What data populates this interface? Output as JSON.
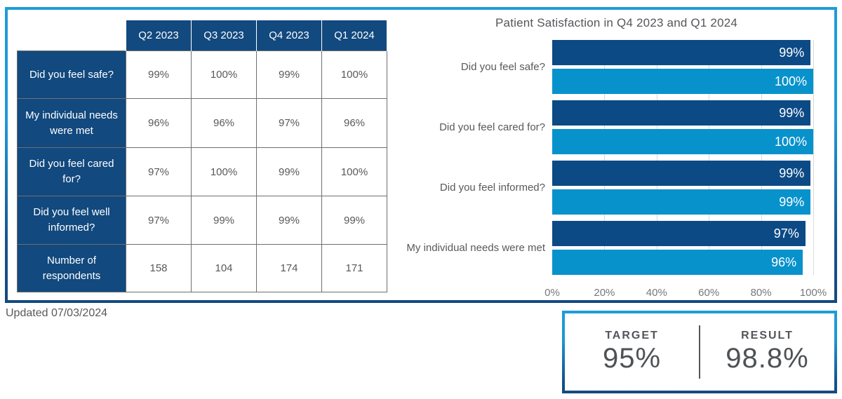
{
  "table": {
    "columns": [
      "Q2 2023",
      "Q3 2023",
      "Q4 2023",
      "Q1 2024"
    ],
    "rows": [
      {
        "label": "Did you feel safe?",
        "values": [
          "99%",
          "100%",
          "99%",
          "100%"
        ]
      },
      {
        "label": "My individual needs were met",
        "values": [
          "96%",
          "96%",
          "97%",
          "96%"
        ]
      },
      {
        "label": "Did you feel cared for?",
        "values": [
          "97%",
          "100%",
          "99%",
          "100%"
        ]
      },
      {
        "label": "Did you feel well informed?",
        "values": [
          "97%",
          "99%",
          "99%",
          "99%"
        ]
      },
      {
        "label": "Number of respondents",
        "values": [
          "158",
          "104",
          "174",
          "171"
        ]
      }
    ]
  },
  "chart_data": {
    "type": "bar",
    "orientation": "horizontal",
    "title": "Patient Satisfaction in Q4 2023 and Q1 2024",
    "categories": [
      "Did you feel safe?",
      "Did you feel cared for?",
      "Did you feel informed?",
      "My individual needs were met"
    ],
    "series": [
      {
        "name": "Q4 2023",
        "color": "#0C4A86",
        "values": [
          99,
          99,
          99,
          97
        ]
      },
      {
        "name": "Q1 2024",
        "color": "#0892CC",
        "values": [
          100,
          100,
          99,
          96
        ]
      }
    ],
    "value_labels": [
      [
        "99%",
        "100%"
      ],
      [
        "99%",
        "100%"
      ],
      [
        "99%",
        "99%"
      ],
      [
        "97%",
        "96%"
      ]
    ],
    "xlim": [
      0,
      100
    ],
    "x_ticks": [
      "0%",
      "20%",
      "40%",
      "60%",
      "80%",
      "100%"
    ],
    "grid": true,
    "legend_position": "none"
  },
  "footer": {
    "updated": "Updated 07/03/2024"
  },
  "summary": {
    "target_label": "TARGET",
    "target_value": "95%",
    "result_label": "RESULT",
    "result_value": "98.8%"
  },
  "colors": {
    "accent_light_blue": "#1F9CD8",
    "accent_navy": "#12497E",
    "bar_dark": "#0C4A86",
    "bar_light": "#0892CC",
    "text_gray": "#58595B",
    "gridline": "#D9D9D9"
  }
}
